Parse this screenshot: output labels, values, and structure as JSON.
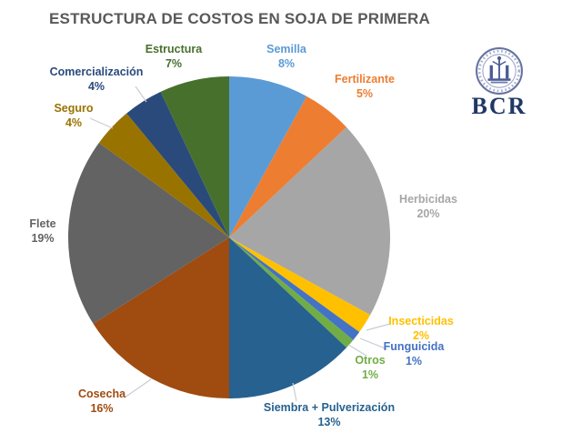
{
  "title": "ESTRUCTURA DE COSTOS EN SOJA DE PRIMERA",
  "logo": {
    "text": "BCR"
  },
  "colors": {
    "title_text": "#595959",
    "leader_line": "#C8CDD3",
    "logo_seal": "#66739F",
    "logo_text": "#203864"
  },
  "chart_data": {
    "type": "pie",
    "title": "ESTRUCTURA DE COSTOS EN SOJA DE PRIMERA",
    "start_angle": "12 o'clock",
    "direction": "clockwise",
    "legend_position": "outside-labels",
    "slices": [
      {
        "label": "Semilla",
        "value": 8,
        "pct_label": "8%",
        "color": "#5B9BD5"
      },
      {
        "label": "Fertilizante",
        "value": 5,
        "pct_label": "5%",
        "color": "#ED7D31"
      },
      {
        "label": "Herbicidas",
        "value": 20,
        "pct_label": "20%",
        "color": "#A6A6A6"
      },
      {
        "label": "Insecticidas",
        "value": 2,
        "pct_label": "2%",
        "color": "#FFC000"
      },
      {
        "label": "Funguicida",
        "value": 1,
        "pct_label": "1%",
        "color": "#4472C4"
      },
      {
        "label": "Otros",
        "value": 1,
        "pct_label": "1%",
        "color": "#70AD47"
      },
      {
        "label": "Siembra + Pulverización",
        "value": 13,
        "pct_label": "13%",
        "color": "#26618F"
      },
      {
        "label": "Cosecha",
        "value": 16,
        "pct_label": "16%",
        "color": "#A04B10"
      },
      {
        "label": "Flete",
        "value": 19,
        "pct_label": "19%",
        "color": "#636363"
      },
      {
        "label": "Seguro",
        "value": 4,
        "pct_label": "4%",
        "color": "#997300"
      },
      {
        "label": "Comercialización",
        "value": 4,
        "pct_label": "4%",
        "color": "#2A4A7C"
      },
      {
        "label": "Estructura",
        "value": 7,
        "pct_label": "7%",
        "color": "#47702D"
      }
    ]
  }
}
